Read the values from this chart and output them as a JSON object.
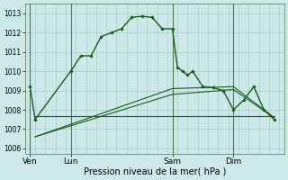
{
  "background_color": "#cce8e8",
  "grid_color": "#aacccc",
  "line_color": "#1a5c1a",
  "title": "Pression niveau de la mer( hPa )",
  "ylabel_ticks": [
    1006,
    1007,
    1008,
    1009,
    1010,
    1011,
    1012,
    1013
  ],
  "ylim": [
    1005.7,
    1013.5
  ],
  "day_labels": [
    "Ven",
    "Lun",
    "Sam",
    "Dim"
  ],
  "day_positions": [
    0,
    4,
    14,
    20
  ],
  "xlim": [
    -0.5,
    25
  ],
  "series1_x": [
    0,
    0.5,
    4,
    5,
    6,
    7,
    8,
    9,
    10,
    11,
    12,
    13,
    14,
    14.5,
    15,
    15.5,
    16,
    17,
    18,
    19,
    20,
    21,
    22,
    23,
    24
  ],
  "series1_y": [
    1009.2,
    1007.5,
    1010.0,
    1010.8,
    1010.8,
    1011.8,
    1012.0,
    1012.2,
    1012.8,
    1012.85,
    1012.8,
    1012.2,
    1012.2,
    1010.2,
    1010.0,
    1009.8,
    1010.0,
    1009.2,
    1009.15,
    1009.0,
    1008.0,
    1008.5,
    1009.2,
    1008.0,
    1007.5
  ],
  "series2_x": [
    0.5,
    4,
    14,
    20,
    24
  ],
  "series2_y": [
    1007.65,
    1007.65,
    1007.65,
    1007.65,
    1007.65
  ],
  "series3_x": [
    0.5,
    14,
    20,
    24
  ],
  "series3_y": [
    1006.6,
    1008.8,
    1009.05,
    1007.6
  ],
  "series4_x": [
    0.5,
    14,
    20,
    24
  ],
  "series4_y": [
    1006.6,
    1009.1,
    1009.2,
    1007.6
  ]
}
